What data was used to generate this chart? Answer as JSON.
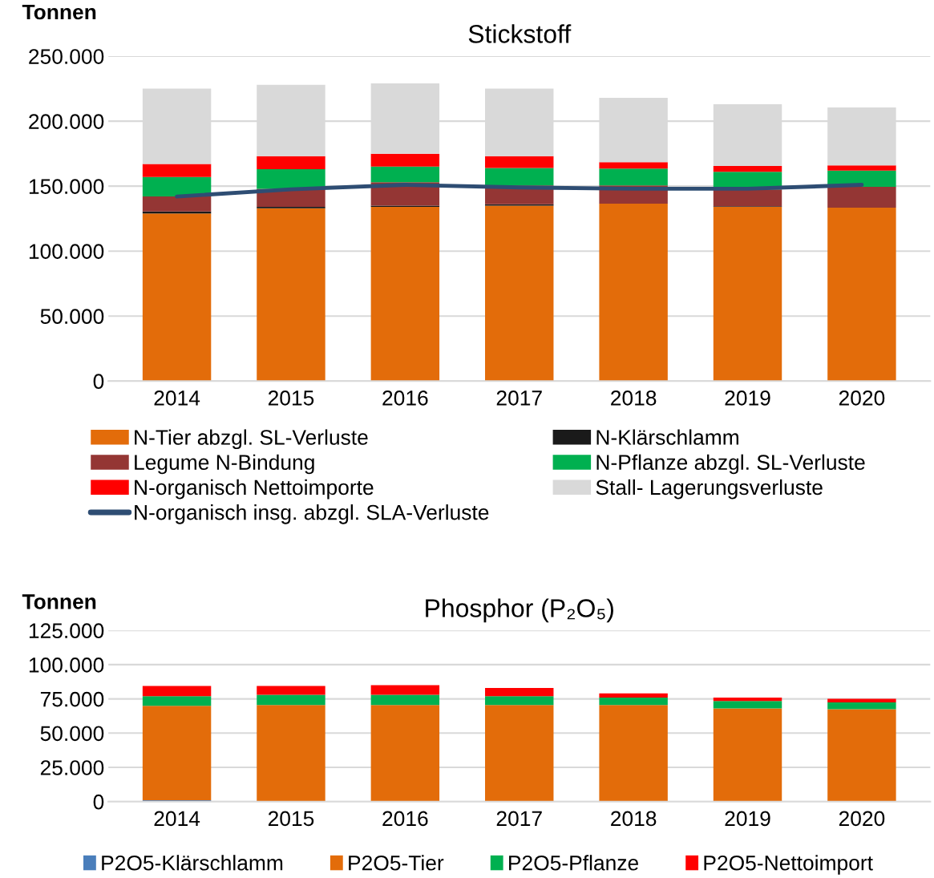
{
  "chart_data": [
    {
      "type": "bar",
      "title": "Stickstoff",
      "ylabel": "Tonnen",
      "stacked": true,
      "grid": "y",
      "legend": "bottom",
      "categories": [
        "2014",
        "2015",
        "2016",
        "2017",
        "2018",
        "2019",
        "2020"
      ],
      "ylim": [
        0,
        250000
      ],
      "yticks": [
        {
          "value": 0,
          "label": "0"
        },
        {
          "value": 50000,
          "label": "50.000"
        },
        {
          "value": 100000,
          "label": "100.000"
        },
        {
          "value": 150000,
          "label": "150.000"
        },
        {
          "value": 200000,
          "label": "200.000"
        },
        {
          "value": 250000,
          "label": "250.000"
        }
      ],
      "series": [
        {
          "name": "N-Tier abzgl. SL-Verluste",
          "color": "#e36c0a",
          "values": [
            129000,
            133000,
            134000,
            135000,
            136500,
            134000,
            133500
          ]
        },
        {
          "name": "N-Klärschlamm",
          "color": "#1a1a1a",
          "values": [
            1500,
            1000,
            1000,
            1000,
            0,
            500,
            0
          ]
        },
        {
          "name": "Legume N-Bindung",
          "color": "#943634",
          "values": [
            11500,
            14000,
            18000,
            14500,
            14000,
            13000,
            16000
          ]
        },
        {
          "name": "N-Pflanze abzgl. SL-Verluste",
          "color": "#00b050",
          "values": [
            15000,
            15000,
            12000,
            13500,
            13000,
            13500,
            12500
          ]
        },
        {
          "name": "N-organisch Nettoimporte",
          "color": "#ff0000",
          "values": [
            10000,
            10000,
            10000,
            9000,
            5000,
            4500,
            4000
          ]
        },
        {
          "name": "Stall- Lagerungsverluste",
          "color": "#d9d9d9",
          "values": [
            58000,
            55000,
            54000,
            52000,
            49500,
            47500,
            44500
          ]
        },
        {
          "name": "N-organisch insg. abzgl. SLA-Verluste",
          "type": "line",
          "color": "#2e4d73",
          "values": [
            142000,
            147500,
            151000,
            149000,
            148000,
            148000,
            151000
          ]
        }
      ]
    },
    {
      "type": "bar",
      "title": "Phosphor (P₂O₅)",
      "ylabel": "Tonnen",
      "stacked": true,
      "grid": "y",
      "legend": "bottom",
      "categories": [
        "2014",
        "2015",
        "2016",
        "2017",
        "2018",
        "2019",
        "2020"
      ],
      "ylim": [
        0,
        125000
      ],
      "yticks": [
        {
          "value": 0,
          "label": "0"
        },
        {
          "value": 25000,
          "label": "25.000"
        },
        {
          "value": 50000,
          "label": "50.000"
        },
        {
          "value": 75000,
          "label": "75.000"
        },
        {
          "value": 100000,
          "label": "100.000"
        },
        {
          "value": 125000,
          "label": "125.000"
        }
      ],
      "series": [
        {
          "name": "P2O5-Klärschlamm",
          "color": "#4a7ebb",
          "values": [
            1000,
            0,
            0,
            0,
            0,
            0,
            0
          ]
        },
        {
          "name": "P2O5-Tier",
          "color": "#e36c0a",
          "values": [
            69000,
            70500,
            70500,
            70500,
            70500,
            68000,
            67500
          ]
        },
        {
          "name": "P2O5-Pflanze",
          "color": "#00b050",
          "values": [
            7000,
            7500,
            7500,
            6500,
            5500,
            5500,
            5000
          ]
        },
        {
          "name": "P2O5-Nettoimport",
          "color": "#ff0000",
          "values": [
            7500,
            6500,
            7000,
            6000,
            3000,
            2500,
            2500
          ]
        }
      ]
    }
  ]
}
